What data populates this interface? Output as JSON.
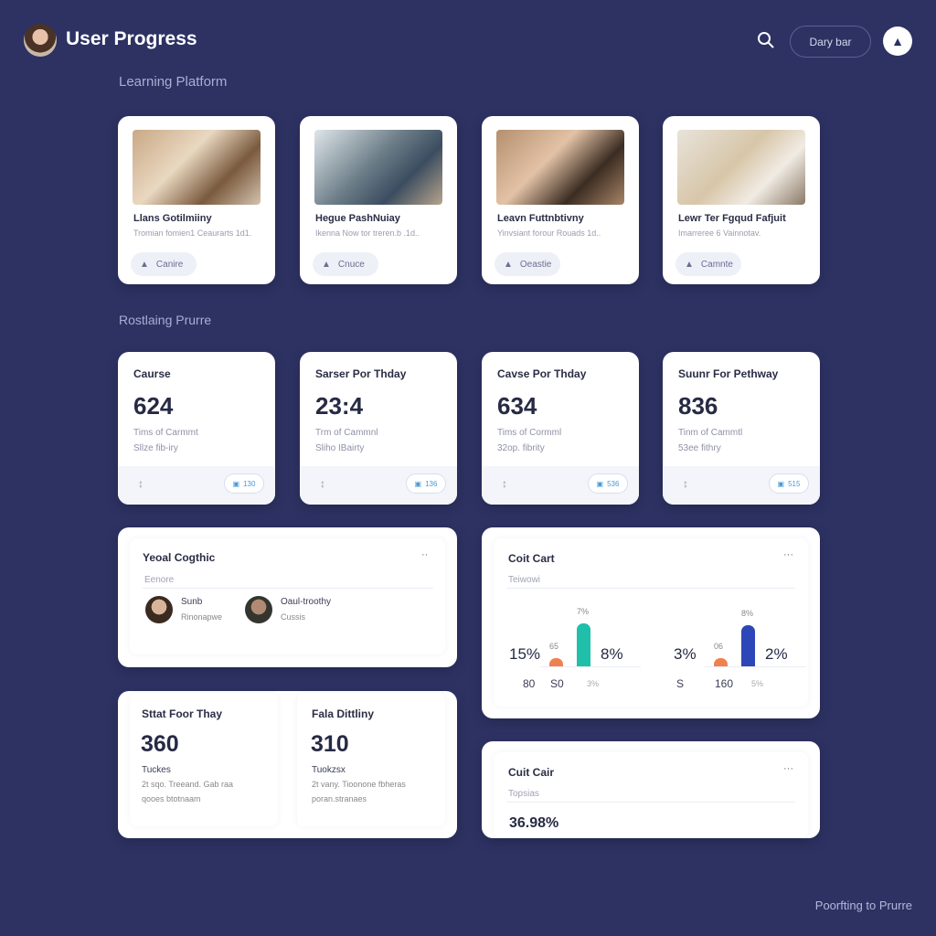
{
  "header": {
    "title": "User Progress",
    "pill_label": "Dary bar",
    "search_icon": "search-icon",
    "user_icon": "user-icon"
  },
  "sections": {
    "courses": "Learning Platform",
    "progress": "Rostlaing Prurre"
  },
  "courses": [
    {
      "title": "Llans Gotilmiiny",
      "subtitle": "Tromian fomien1 Ceaurarts 1d1.",
      "button": "Canire"
    },
    {
      "title": "Hegue PashNuiay",
      "subtitle": "Ikenna Now tor treren.b .1d..",
      "button": "Cnuce"
    },
    {
      "title": "Leavn Futtnbtivny",
      "subtitle": "Yinvsiant forour Rouads 1d..",
      "button": "Oeastie"
    },
    {
      "title": "Lewr Ter Fgqud Fafjuit",
      "subtitle": "Imarreree 6 Vainnotav.",
      "button": "Camnte"
    }
  ],
  "stats": [
    {
      "title": "Caurse",
      "value": "624",
      "line1": "Tims of Carmmt",
      "line2": "Sllze fib-iry",
      "badge": "130"
    },
    {
      "title": "Sarser Por Thday",
      "value": "23:4",
      "line1": "Trm of Cammnl",
      "line2": "Sliho IBairty",
      "badge": "136"
    },
    {
      "title": "Cavse Por Thday",
      "value": "634",
      "line1": "Tims of Cormml",
      "line2": "32op. fibrity",
      "badge": "536"
    },
    {
      "title": "Suunr For Pethway",
      "value": "836",
      "line1": "Tinm of Cammtl",
      "line2": "53ee fithry",
      "badge": "515"
    }
  ],
  "team": {
    "title": "Yeoal Cogthic",
    "subtitle": "Eenore",
    "members": [
      {
        "name": "Sunb",
        "role": "Rinonapwe"
      },
      {
        "name": "Oaul-troothy",
        "role": "Cussis"
      }
    ]
  },
  "mini": [
    {
      "title": "Sttat Foor Thay",
      "value": "360",
      "label": "Tuckes",
      "line1": "2t sqo. Treeand. Gab raa",
      "line2": "qooes btotnaam"
    },
    {
      "title": "Fala Dittliny",
      "value": "310",
      "label": "Tuokzsx",
      "line1": "2t vany. Tioonone fbheras",
      "line2": "poran.stranaes"
    }
  ],
  "chart_panel": {
    "title": "Coit Cart",
    "subtitle": "Teiwowi"
  },
  "chart_data": {
    "type": "bar",
    "groups": [
      {
        "left_label": "15%",
        "right_label": "8%",
        "bottom": [
          "80",
          "S0",
          "3%"
        ],
        "bars": [
          {
            "label": "65",
            "value": 65,
            "color": "#f0814f"
          },
          {
            "label": "7%",
            "value": 100,
            "color": "#1fbfaa"
          }
        ]
      },
      {
        "left_label": "3%",
        "right_label": "2%",
        "bottom": [
          "S",
          "160",
          "5%"
        ],
        "bars": [
          {
            "label": "06",
            "value": 65,
            "color": "#f0814f"
          },
          {
            "label": "8%",
            "value": 95,
            "color": "#2d47b8"
          }
        ]
      }
    ]
  },
  "summary": {
    "title": "Cuit Cair",
    "subtitle": "Topsias",
    "value": "36.98%"
  },
  "footer": "Poorfting to Prurre"
}
